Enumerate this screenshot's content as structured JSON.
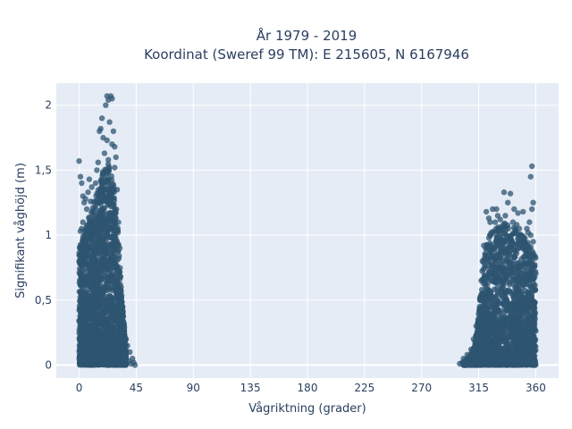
{
  "chart_data": {
    "type": "scatter",
    "title_lines": [
      "År 1979 - 2019",
      "Koordinat (Sweref 99 TM): E 215605, N 6167946"
    ],
    "xlabel": "Vågriktning (grader)",
    "ylabel": "Signifikant våghöjd (m)",
    "xlim": [
      -18,
      378
    ],
    "ylim": [
      -0.1,
      2.17
    ],
    "x_ticks": [
      0,
      45,
      90,
      135,
      180,
      225,
      270,
      315,
      360
    ],
    "x_tick_labels": [
      "0",
      "45",
      "90",
      "135",
      "180",
      "225",
      "270",
      "315",
      "360"
    ],
    "y_ticks": [
      0,
      0.5,
      1,
      1.5,
      2
    ],
    "y_tick_labels": [
      "0",
      "0,5",
      "1",
      "1,5",
      "2"
    ],
    "grid": true,
    "marker_color": "#2e5470",
    "marker_opacity": 0.75,
    "plot_background": "#e5ecf6",
    "series": [
      {
        "points": [
          [
            22,
            2.07
          ],
          [
            25,
            2.07
          ],
          [
            26,
            2.05
          ],
          [
            23,
            2.04
          ],
          [
            21,
            2.0
          ],
          [
            18,
            1.9
          ],
          [
            24,
            1.87
          ],
          [
            17,
            1.82
          ],
          [
            16,
            1.8
          ],
          [
            27,
            1.8
          ],
          [
            19,
            1.75
          ],
          [
            22,
            1.73
          ],
          [
            26,
            1.7
          ],
          [
            28,
            1.68
          ],
          [
            20,
            1.63
          ],
          [
            29,
            1.6
          ],
          [
            0,
            1.57
          ],
          [
            23,
            1.58
          ],
          [
            15,
            1.56
          ],
          [
            14,
            1.5
          ],
          [
            28,
            1.52
          ],
          [
            1,
            1.45
          ],
          [
            2,
            1.4
          ],
          [
            13,
            1.4
          ],
          [
            8,
            1.43
          ],
          [
            10,
            1.37
          ],
          [
            3,
            1.3
          ],
          [
            5,
            1.28
          ],
          [
            7,
            1.33
          ],
          [
            30,
            1.35
          ],
          [
            4,
            1.25
          ],
          [
            9,
            1.26
          ],
          [
            6,
            1.2
          ],
          [
            11,
            1.15
          ],
          [
            3,
            1.1
          ],
          [
            2,
            1.05
          ],
          [
            1,
            1.03
          ],
          [
            31,
            1.1
          ],
          [
            32,
            0.9
          ],
          [
            33,
            0.6
          ],
          [
            34,
            0.45
          ],
          [
            35,
            0.3
          ],
          [
            37,
            0.2
          ],
          [
            38,
            0.15
          ],
          [
            40,
            0.1
          ],
          [
            42,
            0.05
          ],
          [
            43,
            0.02
          ],
          [
            44,
            0.0
          ],
          [
            41,
            0.01
          ],
          [
            39,
            0.03
          ],
          [
            357,
            1.53
          ],
          [
            356,
            1.45
          ],
          [
            358,
            1.25
          ],
          [
            357,
            1.2
          ],
          [
            355,
            1.1
          ],
          [
            353,
            1.05
          ],
          [
            356,
            1.0
          ],
          [
            354,
            1.02
          ],
          [
            358,
            0.95
          ],
          [
            335,
            1.33
          ],
          [
            340,
            1.32
          ],
          [
            338,
            1.25
          ],
          [
            343,
            1.2
          ],
          [
            346,
            1.17
          ],
          [
            350,
            1.18
          ],
          [
            330,
            1.15
          ],
          [
            326,
            1.2
          ],
          [
            321,
            1.18
          ],
          [
            329,
            1.2
          ],
          [
            324,
            1.1
          ],
          [
            332,
            1.12
          ],
          [
            342,
            1.1
          ],
          [
            345,
            1.08
          ],
          [
            336,
            1.15
          ],
          [
            328,
            1.1
          ],
          [
            323,
            1.13
          ],
          [
            347,
            1.05
          ],
          [
            348,
            1.0
          ],
          [
            319,
            0.92
          ],
          [
            318,
            0.8
          ],
          [
            317,
            0.65
          ],
          [
            316,
            0.5
          ],
          [
            315,
            0.4
          ],
          [
            313,
            0.3
          ],
          [
            311,
            0.2
          ],
          [
            309,
            0.12
          ],
          [
            306,
            0.08
          ],
          [
            303,
            0.05
          ],
          [
            300,
            0.01
          ],
          [
            302,
            0.02
          ],
          [
            305,
            0.04
          ],
          [
            308,
            0.07
          ],
          [
            310,
            0.1
          ]
        ],
        "dense_regions": [
          {
            "x_range": [
              0,
              37
            ],
            "y_max_by_x": [
              [
                0,
                0.9
              ],
              [
                3,
                1.0
              ],
              [
                7,
                1.12
              ],
              [
                11,
                1.25
              ],
              [
                15,
                1.35
              ],
              [
                19,
                1.5
              ],
              [
                23,
                1.55
              ],
              [
                27,
                1.4
              ],
              [
                30,
                1.15
              ],
              [
                32,
                0.8
              ],
              [
                34,
                0.5
              ],
              [
                36,
                0.25
              ],
              [
                37,
                0.1
              ]
            ]
          },
          {
            "x_range": [
              303,
              360
            ],
            "y_max_by_x": [
              [
                303,
                0.02
              ],
              [
                307,
                0.06
              ],
              [
                311,
                0.12
              ],
              [
                314,
                0.3
              ],
              [
                316,
                0.55
              ],
              [
                318,
                0.75
              ],
              [
                320,
                0.9
              ],
              [
                324,
                1.02
              ],
              [
                330,
                1.08
              ],
              [
                337,
                1.1
              ],
              [
                343,
                1.07
              ],
              [
                350,
                1.0
              ],
              [
                355,
                0.93
              ],
              [
                360,
                0.85
              ]
            ]
          }
        ]
      }
    ]
  }
}
